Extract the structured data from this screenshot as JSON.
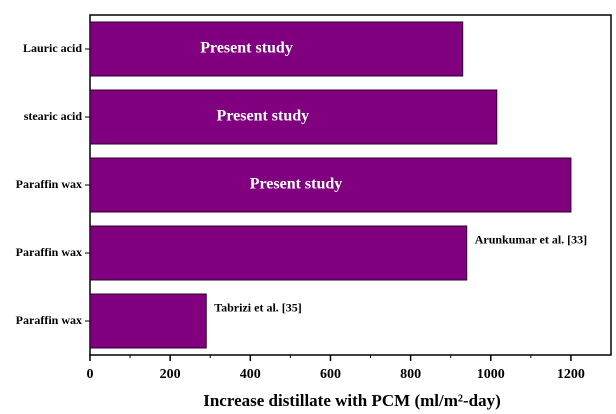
{
  "chart_data": {
    "type": "bar",
    "orientation": "horizontal",
    "categories": [
      "Lauric acid",
      "stearic acid",
      "Paraffin wax",
      "Paraffin wax",
      "Paraffin wax"
    ],
    "values": [
      930,
      1015,
      1200,
      940,
      290
    ],
    "bar_labels": [
      "Present study",
      "Present study",
      "Present study",
      "Arunkumar et al. [33]",
      "Tabrizi et al. [35]"
    ],
    "color": "#800080",
    "xlabel": "Increase distillate with PCM (ml/m²-day)",
    "xlim": [
      0,
      1300
    ],
    "xticks": [
      0,
      200,
      400,
      600,
      800,
      1000,
      1200
    ]
  }
}
